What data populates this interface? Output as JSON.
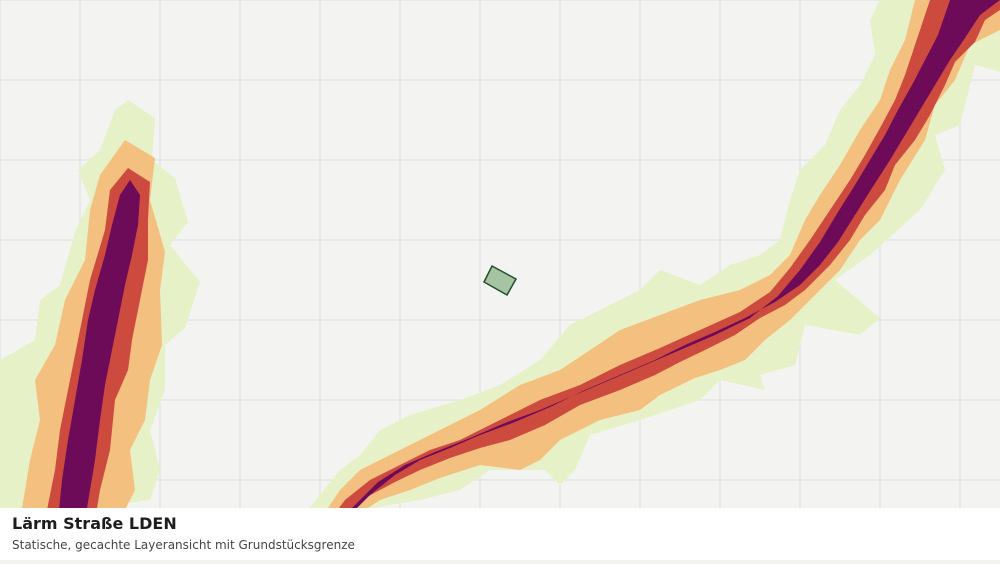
{
  "layer": {
    "title": "Lärm Straße LDEN",
    "subtitle": "Statische, gecachte Layeransicht mit Grundstücksgrenze"
  },
  "legend_colors": {
    "band_outer": "#e6f1c8",
    "band_2": "#f3c07f",
    "band_3": "#cc4a3e",
    "band_core": "#6e0b59",
    "parcel_fill": "#a6c3a2",
    "parcel_stroke": "#1f4f2c"
  },
  "map": {
    "grid": true
  }
}
